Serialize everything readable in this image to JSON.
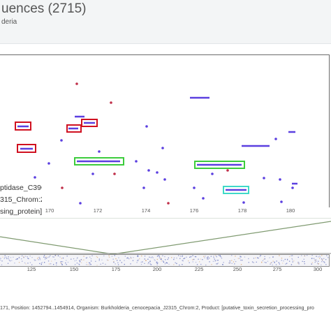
{
  "header": {
    "title": "uences (2715)",
    "subtitle": "deria"
  },
  "tooltip": {
    "lines": [
      "ptidase_C39C",
      "315_Chrom:2",
      "sing_protein]"
    ]
  },
  "axis": {
    "ticks": [
      "170",
      "172",
      "174",
      "176",
      "178",
      "180"
    ],
    "ticks_bottom": [
      "125",
      "150",
      "175",
      "200",
      "225",
      "250",
      "275",
      "300"
    ]
  },
  "status": {
    "text": "171, Position: 1452794..1454914, Organism: Burkholderia_cenocepacia_J2315_Chrom:2, Product: [putative_toxin_secretion_processing_pro"
  },
  "colors": {
    "feature": "#5b3fe0",
    "dot": "#c0304a",
    "box_red": "#d01020",
    "box_green": "#3ccc3c",
    "box_cyan": "#3fd9c8",
    "overview_line": "#7f9a70"
  }
}
